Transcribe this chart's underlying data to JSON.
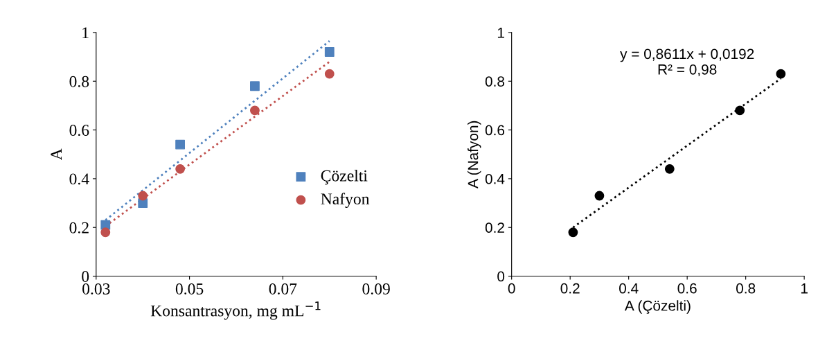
{
  "chart_data": [
    {
      "type": "scatter",
      "xlabel": "Konsantrasyon, mg mL$^{−1}$",
      "ylabel": "A",
      "xlim": [
        0.03,
        0.09
      ],
      "xticks": [
        0.03,
        0.05,
        0.07,
        0.09
      ],
      "ylim": [
        0,
        1
      ],
      "yticks": [
        0,
        0.2,
        0.4,
        0.6,
        0.8,
        1
      ],
      "grid": false,
      "legend": "bottom right",
      "series": [
        {
          "name": "Çözelti",
          "color": "#4f81bd",
          "marker": "square",
          "x": [
            0.032,
            0.04,
            0.048,
            0.064,
            0.08
          ],
          "values": [
            0.21,
            0.3,
            0.54,
            0.78,
            0.92
          ]
        },
        {
          "name": "Nafyon",
          "color": "#c0504d",
          "marker": "circle",
          "x": [
            0.032,
            0.04,
            0.048,
            0.064,
            0.08
          ],
          "values": [
            0.18,
            0.33,
            0.44,
            0.68,
            0.83
          ]
        },
        {
          "type": "line",
          "color": "#4f81bd",
          "line_style": "dotted",
          "x": [
            0.032,
            0.08
          ],
          "values": [
            0.23,
            0.965
          ]
        },
        {
          "type": "line",
          "color": "#c0504d",
          "line_style": "dotted",
          "x": [
            0.032,
            0.08
          ],
          "values": [
            0.205,
            0.88
          ]
        }
      ]
    },
    {
      "type": "scatter",
      "xlabel": "A (Çözelti)",
      "ylabel": "A (Nafyon)",
      "xlim": [
        0,
        1
      ],
      "xticks": [
        0,
        0.2,
        0.4,
        0.6,
        0.8,
        1
      ],
      "ylim": [
        0,
        1
      ],
      "yticks": [
        0,
        0.2,
        0.4,
        0.6,
        0.8,
        1
      ],
      "grid": false,
      "annotations": [
        "y = 0,8611x + 0,0192\nR² = 0,98"
      ],
      "series": [
        {
          "color": "#000000",
          "marker": "circle",
          "x": [
            0.21,
            0.3,
            0.54,
            0.78,
            0.92
          ],
          "values": [
            0.18,
            0.33,
            0.44,
            0.68,
            0.83
          ]
        },
        {
          "type": "line",
          "color": "#000000",
          "line_style": "dotted",
          "x": [
            0.21,
            0.92
          ],
          "values": [
            0.2,
            0.811
          ]
        }
      ]
    }
  ]
}
